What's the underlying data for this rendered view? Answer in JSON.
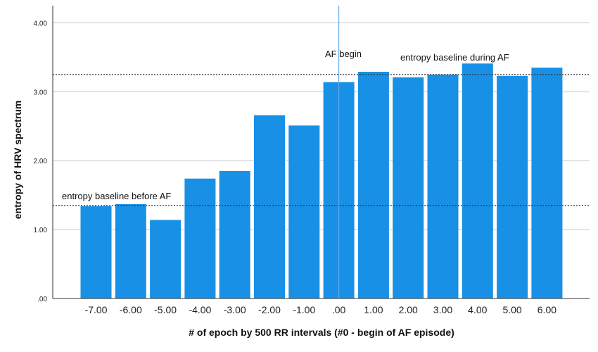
{
  "chart_data": {
    "type": "bar",
    "xlabel": "# of epoch by 500 RR intervals (#0 - begin of AF episode)",
    "ylabel": "entropy of HRV spectrum",
    "categories": [
      "-7.00",
      "-6.00",
      "-5.00",
      "-4.00",
      "-3.00",
      "-2.00",
      "-1.00",
      ".00",
      "1.00",
      "2.00",
      "3.00",
      "4.00",
      "5.00",
      "6.00"
    ],
    "values": [
      1.34,
      1.37,
      1.14,
      1.74,
      1.85,
      2.66,
      2.51,
      3.14,
      3.29,
      3.21,
      3.25,
      3.41,
      3.23,
      3.35
    ],
    "ylim": [
      0,
      4.25
    ],
    "yticks": [
      ".00",
      "1.00",
      "2.00",
      "3.00",
      "4.00"
    ],
    "ytick_values": [
      0,
      1,
      2,
      3,
      4
    ],
    "grid": true,
    "bar_color": "#1890E6",
    "reference_lines": [
      {
        "axis": "y",
        "value": 1.35,
        "style": "dotted",
        "label": "entropy baseline before AF"
      },
      {
        "axis": "y",
        "value": 3.25,
        "style": "dotted",
        "label": "entropy baseline during AF"
      },
      {
        "axis": "x",
        "value": ".00",
        "style": "solid",
        "label": "AF begin",
        "color": "#6AA7E8"
      }
    ]
  }
}
